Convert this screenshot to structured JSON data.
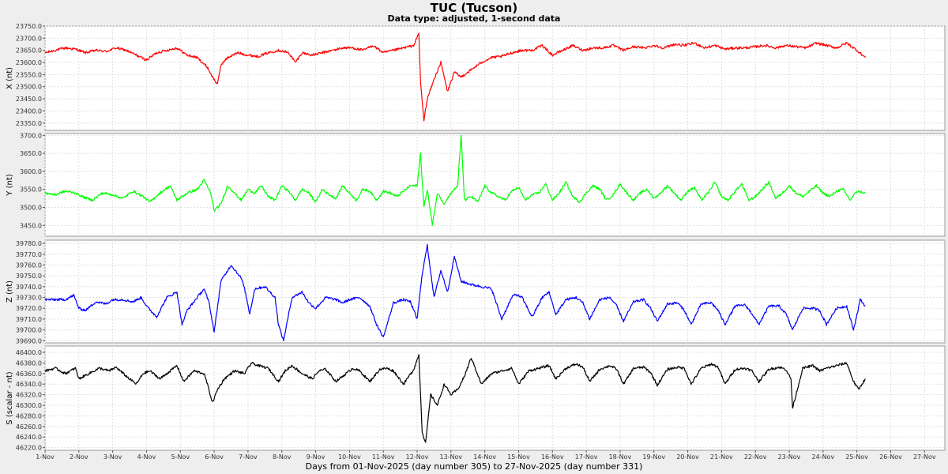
{
  "chart_data": {
    "type": "line",
    "title": "TUC (Tucson)",
    "subtitle": "Data type: adjusted, 1-second data",
    "xlabel": "Days from 01-Nov-2025 (day number 305) to 27-Nov-2025 (day number 331)",
    "x_ticks": [
      "1-Nov",
      "2-Nov",
      "3-Nov",
      "4-Nov",
      "5-Nov",
      "6-Nov",
      "7-Nov",
      "8-Nov",
      "9-Nov",
      "10-Nov",
      "11-Nov",
      "12-Nov",
      "13-Nov",
      "14-Nov",
      "15-Nov",
      "16-Nov",
      "17-Nov",
      "18-Nov",
      "19-Nov",
      "20-Nov",
      "21-Nov",
      "22-Nov",
      "23-Nov",
      "24-Nov",
      "25-Nov",
      "26-Nov",
      "27-Nov"
    ],
    "xlim": [
      1,
      27.6
    ],
    "grid": true,
    "panels": [
      {
        "ylabel": "X (nt)",
        "color": "#ff0000",
        "ylim": [
          23320,
          23750
        ],
        "y_ticks": [
          "23750.0",
          "23700.0",
          "23650.0",
          "23600.0",
          "23550.0",
          "23500.0",
          "23450.0",
          "23400.0",
          "23350.0"
        ],
        "y_tick_values": [
          23750,
          23700,
          23650,
          23600,
          23550,
          23500,
          23450,
          23400,
          23350
        ],
        "series": {
          "x": [
            1.0,
            1.3,
            1.6,
            1.9,
            2.2,
            2.5,
            2.8,
            3.1,
            3.4,
            3.7,
            4.0,
            4.3,
            4.6,
            4.9,
            5.2,
            5.5,
            5.8,
            5.95,
            6.1,
            6.2,
            6.4,
            6.7,
            7.0,
            7.3,
            7.6,
            7.9,
            8.2,
            8.4,
            8.6,
            8.9,
            9.2,
            9.5,
            9.8,
            10.1,
            10.4,
            10.7,
            11.0,
            11.3,
            11.6,
            11.9,
            12.05,
            12.1,
            12.2,
            12.3,
            12.5,
            12.7,
            12.9,
            13.1,
            13.3,
            13.6,
            13.9,
            14.2,
            14.5,
            14.8,
            15.1,
            15.4,
            15.7,
            16.0,
            16.3,
            16.6,
            16.9,
            17.2,
            17.5,
            17.8,
            18.1,
            18.4,
            18.7,
            19.0,
            19.3,
            19.6,
            19.9,
            20.2,
            20.5,
            20.8,
            21.1,
            21.4,
            21.7,
            22.0,
            22.3,
            22.6,
            22.9,
            23.2,
            23.5,
            23.8,
            24.1,
            24.4,
            24.7,
            25.0,
            25.25
          ],
          "y": [
            23640,
            23650,
            23660,
            23655,
            23640,
            23650,
            23645,
            23660,
            23650,
            23630,
            23610,
            23640,
            23650,
            23660,
            23630,
            23620,
            23580,
            23540,
            23510,
            23590,
            23620,
            23640,
            23630,
            23625,
            23640,
            23650,
            23640,
            23600,
            23640,
            23630,
            23640,
            23650,
            23660,
            23660,
            23650,
            23670,
            23640,
            23650,
            23660,
            23670,
            23720,
            23520,
            23360,
            23450,
            23530,
            23600,
            23480,
            23560,
            23540,
            23570,
            23600,
            23620,
            23625,
            23640,
            23650,
            23650,
            23670,
            23630,
            23650,
            23670,
            23650,
            23660,
            23660,
            23670,
            23650,
            23665,
            23660,
            23670,
            23660,
            23675,
            23670,
            23680,
            23660,
            23670,
            23655,
            23660,
            23660,
            23665,
            23670,
            23660,
            23670,
            23665,
            23660,
            23680,
            23670,
            23660,
            23680,
            23650,
            23620
          ]
        }
      },
      {
        "ylabel": "Y (nt)",
        "color": "#00ff00",
        "ylim": [
          3420,
          3705
        ],
        "y_ticks": [
          "3700.0",
          "3650.0",
          "3600.0",
          "3550.0",
          "3500.0",
          "3450.0"
        ],
        "y_tick_values": [
          3700,
          3650,
          3600,
          3550,
          3500,
          3450
        ],
        "series": {
          "x": [
            1.0,
            1.3,
            1.6,
            1.9,
            2.1,
            2.4,
            2.7,
            3.0,
            3.3,
            3.6,
            3.9,
            4.1,
            4.4,
            4.7,
            4.9,
            5.2,
            5.5,
            5.7,
            5.9,
            6.0,
            6.2,
            6.4,
            6.6,
            6.8,
            7.0,
            7.2,
            7.4,
            7.6,
            7.8,
            8.0,
            8.2,
            8.4,
            8.6,
            8.8,
            9.0,
            9.2,
            9.4,
            9.6,
            9.8,
            10.0,
            10.2,
            10.4,
            10.6,
            10.8,
            11.0,
            11.2,
            11.4,
            11.6,
            11.8,
            12.0,
            12.1,
            12.2,
            12.3,
            12.45,
            12.6,
            12.8,
            13.0,
            13.2,
            13.3,
            13.4,
            13.6,
            13.8,
            14.0,
            14.2,
            14.4,
            14.6,
            14.8,
            15.0,
            15.2,
            15.4,
            15.6,
            15.8,
            16.0,
            16.2,
            16.4,
            16.6,
            16.8,
            17.0,
            17.2,
            17.4,
            17.6,
            17.8,
            18.0,
            18.2,
            18.4,
            18.6,
            18.8,
            19.0,
            19.2,
            19.4,
            19.6,
            19.8,
            20.0,
            20.2,
            20.4,
            20.6,
            20.8,
            21.0,
            21.2,
            21.4,
            21.6,
            21.8,
            22.0,
            22.2,
            22.4,
            22.6,
            22.8,
            23.0,
            23.2,
            23.4,
            23.6,
            23.8,
            24.0,
            24.2,
            24.4,
            24.6,
            24.8,
            25.0,
            25.25
          ],
          "y": [
            3540,
            3535,
            3545,
            3540,
            3530,
            3520,
            3540,
            3535,
            3525,
            3545,
            3530,
            3515,
            3540,
            3560,
            3520,
            3540,
            3550,
            3575,
            3540,
            3490,
            3510,
            3560,
            3540,
            3520,
            3550,
            3540,
            3560,
            3530,
            3520,
            3560,
            3545,
            3520,
            3550,
            3540,
            3515,
            3550,
            3535,
            3525,
            3560,
            3540,
            3520,
            3550,
            3545,
            3520,
            3545,
            3540,
            3530,
            3545,
            3560,
            3560,
            3650,
            3500,
            3550,
            3450,
            3540,
            3510,
            3540,
            3560,
            3700,
            3520,
            3530,
            3515,
            3560,
            3540,
            3530,
            3520,
            3545,
            3555,
            3520,
            3535,
            3540,
            3565,
            3520,
            3540,
            3570,
            3530,
            3515,
            3540,
            3560,
            3550,
            3520,
            3535,
            3565,
            3540,
            3520,
            3540,
            3550,
            3525,
            3540,
            3560,
            3540,
            3520,
            3545,
            3555,
            3520,
            3540,
            3570,
            3530,
            3520,
            3545,
            3565,
            3520,
            3530,
            3550,
            3570,
            3525,
            3540,
            3560,
            3540,
            3530,
            3545,
            3560,
            3540,
            3530,
            3545,
            3550,
            3520,
            3545,
            3540
          ]
        }
      },
      {
        "ylabel": "Z (nt)",
        "color": "#0000ff",
        "ylim": [
          39688,
          39783
        ],
        "y_ticks": [
          "39780.0",
          "39770.0",
          "39760.0",
          "39750.0",
          "39740.0",
          "39730.0",
          "39720.0",
          "39710.0",
          "39700.0",
          "39690.0"
        ],
        "y_tick_values": [
          39780,
          39770,
          39760,
          39750,
          39740,
          39730,
          39720,
          39710,
          39700,
          39690
        ],
        "series": {
          "x": [
            1.0,
            1.3,
            1.6,
            1.85,
            2.0,
            2.2,
            2.5,
            2.8,
            3.0,
            3.3,
            3.6,
            3.85,
            4.0,
            4.3,
            4.6,
            4.9,
            5.05,
            5.2,
            5.5,
            5.7,
            5.85,
            6.0,
            6.2,
            6.5,
            6.8,
            6.9,
            7.05,
            7.2,
            7.5,
            7.8,
            7.9,
            8.05,
            8.3,
            8.6,
            8.8,
            9.0,
            9.3,
            9.6,
            9.8,
            10.0,
            10.3,
            10.6,
            10.8,
            11.0,
            11.3,
            11.6,
            11.8,
            12.0,
            12.15,
            12.3,
            12.5,
            12.7,
            12.9,
            13.1,
            13.3,
            13.6,
            13.9,
            14.2,
            14.5,
            14.8,
            14.9,
            15.1,
            15.4,
            15.7,
            15.9,
            16.1,
            16.4,
            16.7,
            16.9,
            17.1,
            17.4,
            17.7,
            17.9,
            18.1,
            18.4,
            18.7,
            18.9,
            19.1,
            19.4,
            19.7,
            19.9,
            20.1,
            20.4,
            20.7,
            20.9,
            21.1,
            21.4,
            21.7,
            21.9,
            22.1,
            22.4,
            22.7,
            22.9,
            23.1,
            23.4,
            23.7,
            23.9,
            24.1,
            24.4,
            24.7,
            24.9,
            25.1,
            25.25
          ],
          "y": [
            39728,
            39728,
            39728,
            39732,
            39720,
            39718,
            39726,
            39724,
            39728,
            39728,
            39726,
            39730,
            39722,
            39712,
            39730,
            39735,
            39705,
            39718,
            39730,
            39738,
            39725,
            39698,
            39745,
            39760,
            39748,
            39738,
            39715,
            39738,
            39740,
            39730,
            39705,
            39690,
            39730,
            39735,
            39725,
            39720,
            39730,
            39728,
            39725,
            39728,
            39730,
            39722,
            39705,
            39693,
            39725,
            39728,
            39726,
            39710,
            39752,
            39778,
            39730,
            39755,
            39735,
            39768,
            39745,
            39742,
            39740,
            39738,
            39710,
            39730,
            39733,
            39730,
            39712,
            39730,
            39735,
            39714,
            39728,
            39730,
            39725,
            39710,
            39728,
            39730,
            39722,
            39708,
            39726,
            39728,
            39720,
            39708,
            39724,
            39725,
            39718,
            39705,
            39724,
            39725,
            39718,
            39705,
            39722,
            39723,
            39715,
            39705,
            39722,
            39722,
            39715,
            39700,
            39720,
            39720,
            39718,
            39705,
            39720,
            39722,
            39700,
            39728,
            39722
          ]
        }
      },
      {
        "ylabel": "S (scalar - nt)",
        "color": "#000000",
        "ylim": [
          46215,
          46412
        ],
        "y_ticks": [
          "46400.0",
          "46380.0",
          "46360.0",
          "46340.0",
          "46320.0",
          "46300.0",
          "46280.0",
          "46260.0",
          "46240.0",
          "46220.0"
        ],
        "y_tick_values": [
          46400,
          46380,
          46360,
          46340,
          46320,
          46300,
          46280,
          46260,
          46240,
          46220
        ],
        "series": {
          "x": [
            1.0,
            1.3,
            1.6,
            1.9,
            2.0,
            2.3,
            2.6,
            2.9,
            3.1,
            3.4,
            3.7,
            3.9,
            4.1,
            4.4,
            4.7,
            4.9,
            5.1,
            5.4,
            5.7,
            5.8,
            5.95,
            6.1,
            6.3,
            6.6,
            6.9,
            7.1,
            7.3,
            7.6,
            7.9,
            8.1,
            8.3,
            8.6,
            8.9,
            9.1,
            9.3,
            9.6,
            9.9,
            10.1,
            10.3,
            10.6,
            10.9,
            11.1,
            11.3,
            11.6,
            11.9,
            12.05,
            12.15,
            12.25,
            12.4,
            12.6,
            12.8,
            13.0,
            13.2,
            13.4,
            13.6,
            13.9,
            14.2,
            14.5,
            14.8,
            15.0,
            15.3,
            15.6,
            15.9,
            16.1,
            16.4,
            16.7,
            16.9,
            17.1,
            17.4,
            17.7,
            17.9,
            18.1,
            18.4,
            18.7,
            18.9,
            19.1,
            19.4,
            19.7,
            19.9,
            20.1,
            20.4,
            20.7,
            20.9,
            21.1,
            21.4,
            21.7,
            21.9,
            22.1,
            22.4,
            22.7,
            22.9,
            23.05,
            23.1,
            23.4,
            23.7,
            23.9,
            24.1,
            24.4,
            24.7,
            24.9,
            25.05,
            25.25
          ],
          "y": [
            46365,
            46370,
            46360,
            46370,
            46350,
            46360,
            46370,
            46365,
            46372,
            46355,
            46340,
            46360,
            46365,
            46350,
            46365,
            46375,
            46345,
            46365,
            46360,
            46340,
            46305,
            46330,
            46350,
            46365,
            46360,
            46380,
            46375,
            46370,
            46345,
            46365,
            46375,
            46360,
            46350,
            46365,
            46368,
            46345,
            46360,
            46370,
            46365,
            46345,
            46368,
            46370,
            46365,
            46340,
            46368,
            46395,
            46250,
            46228,
            46320,
            46300,
            46340,
            46320,
            46330,
            46355,
            46390,
            46340,
            46360,
            46365,
            46370,
            46340,
            46365,
            46370,
            46375,
            46350,
            46370,
            46378,
            46372,
            46345,
            46368,
            46375,
            46368,
            46340,
            46370,
            46372,
            46362,
            46338,
            46368,
            46372,
            46370,
            46340,
            46370,
            46378,
            46372,
            46340,
            46368,
            46370,
            46365,
            46345,
            46368,
            46372,
            46368,
            46350,
            46295,
            46370,
            46375,
            46365,
            46370,
            46375,
            46380,
            46345,
            46330,
            46350
          ]
        }
      }
    ]
  }
}
